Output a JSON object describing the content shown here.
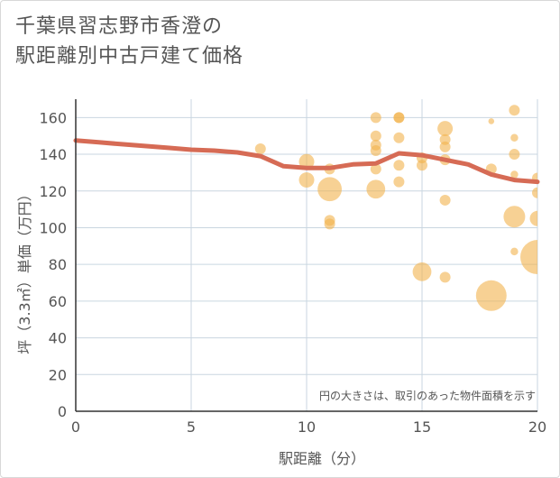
{
  "title_line1": "千葉県習志野市香澄の",
  "title_line2": "駅距離別中古戸建て価格",
  "colors": {
    "bubble": "#f2b24c",
    "trend": "#d66b55",
    "grid": "#c9d6e0",
    "axis": "#333333",
    "text": "#555555"
  },
  "chart_data": {
    "type": "scatter",
    "title": "千葉県習志野市香澄の駅距離別中古戸建て価格",
    "xlabel": "駅距離（分）",
    "ylabel": "坪（3.3㎡）単価（万円）",
    "xlim": [
      0,
      20
    ],
    "ylim": [
      0,
      170
    ],
    "x_ticks": [
      0,
      5,
      10,
      15,
      20
    ],
    "y_ticks": [
      0,
      20,
      40,
      60,
      80,
      100,
      120,
      140,
      160
    ],
    "annotation": "円の大きさは、取引のあった物件面積を示す",
    "bubbles": [
      {
        "x": 8,
        "y": 143,
        "size": 1
      },
      {
        "x": 10,
        "y": 136,
        "size": 2
      },
      {
        "x": 10,
        "y": 126,
        "size": 2
      },
      {
        "x": 11,
        "y": 132,
        "size": 1
      },
      {
        "x": 11,
        "y": 121,
        "size": 5
      },
      {
        "x": 11,
        "y": 104,
        "size": 1
      },
      {
        "x": 11,
        "y": 102,
        "size": 1
      },
      {
        "x": 13,
        "y": 160,
        "size": 1
      },
      {
        "x": 13,
        "y": 150,
        "size": 1
      },
      {
        "x": 13,
        "y": 145,
        "size": 1
      },
      {
        "x": 13,
        "y": 142,
        "size": 1
      },
      {
        "x": 13,
        "y": 132,
        "size": 1
      },
      {
        "x": 13,
        "y": 121,
        "size": 3
      },
      {
        "x": 14,
        "y": 160,
        "size": 1
      },
      {
        "x": 14,
        "y": 160,
        "size": 1
      },
      {
        "x": 14,
        "y": 149,
        "size": 1
      },
      {
        "x": 14,
        "y": 134,
        "size": 1
      },
      {
        "x": 14,
        "y": 125,
        "size": 1
      },
      {
        "x": 15,
        "y": 138,
        "size": 1
      },
      {
        "x": 15,
        "y": 134,
        "size": 1
      },
      {
        "x": 15,
        "y": 76,
        "size": 3
      },
      {
        "x": 16,
        "y": 154,
        "size": 2
      },
      {
        "x": 16,
        "y": 148,
        "size": 1
      },
      {
        "x": 16,
        "y": 144,
        "size": 1
      },
      {
        "x": 16,
        "y": 137,
        "size": 1
      },
      {
        "x": 16,
        "y": 115,
        "size": 1
      },
      {
        "x": 16,
        "y": 73,
        "size": 1
      },
      {
        "x": 18,
        "y": 158,
        "size": 0.3
      },
      {
        "x": 18,
        "y": 132,
        "size": 1
      },
      {
        "x": 18,
        "y": 63,
        "size": 8
      },
      {
        "x": 19,
        "y": 164,
        "size": 1
      },
      {
        "x": 19,
        "y": 149,
        "size": 0.5
      },
      {
        "x": 19,
        "y": 140,
        "size": 1
      },
      {
        "x": 19,
        "y": 129,
        "size": 0.5
      },
      {
        "x": 19,
        "y": 106,
        "size": 4
      },
      {
        "x": 19,
        "y": 87,
        "size": 0.5
      },
      {
        "x": 20,
        "y": 127,
        "size": 1
      },
      {
        "x": 20,
        "y": 119,
        "size": 1
      },
      {
        "x": 20,
        "y": 105,
        "size": 2
      },
      {
        "x": 20,
        "y": 84,
        "size": 10
      }
    ],
    "trend": {
      "x": [
        0,
        1,
        2,
        3,
        4,
        5,
        6,
        7,
        8,
        9,
        10,
        11,
        12,
        13,
        14,
        15,
        16,
        17,
        18,
        19,
        20
      ],
      "y": [
        147.5,
        146.5,
        145.5,
        144.5,
        143.5,
        142.5,
        142,
        141,
        139,
        133.5,
        132.5,
        132.5,
        134.5,
        135,
        140.5,
        139.5,
        137,
        134.5,
        129,
        126,
        125
      ]
    }
  }
}
